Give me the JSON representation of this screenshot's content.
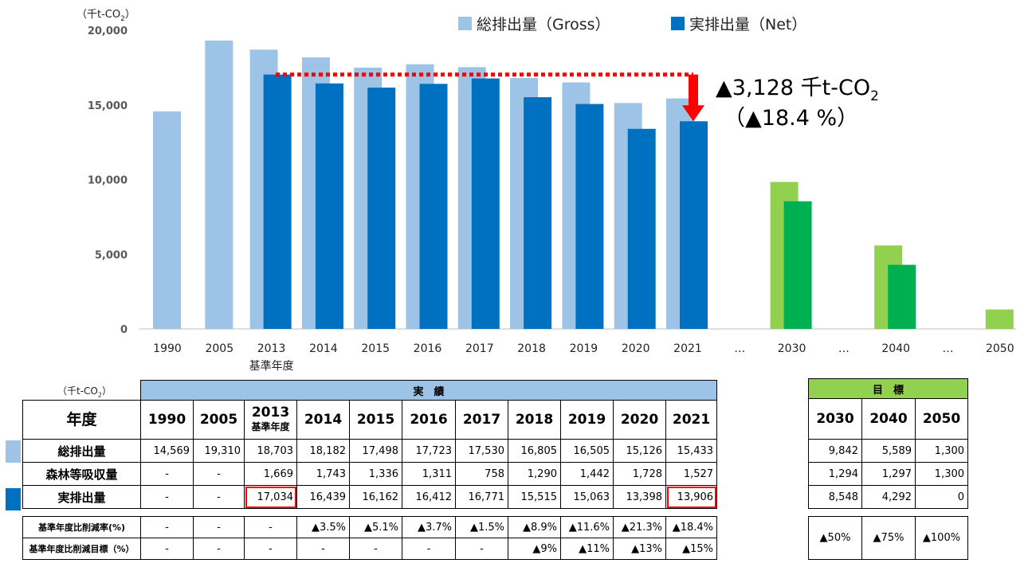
{
  "chart_data": {
    "type": "bar",
    "y_unit": "（千t-CO",
    "y_unit_sub": "2",
    "y_unit_close": "）",
    "ylim": [
      0,
      20000
    ],
    "yticks": [
      0,
      5000,
      10000,
      15000,
      20000
    ],
    "ytick_labels": [
      "0",
      "5,000",
      "10,000",
      "15,000",
      "20,000"
    ],
    "categories": [
      "1990",
      "2005",
      "2013",
      "2014",
      "2015",
      "2016",
      "2017",
      "2018",
      "2019",
      "2020",
      "2021",
      "…",
      "2030",
      "…",
      "2040",
      "…",
      "2050"
    ],
    "category_sublabels": {
      "2": "基準年度"
    },
    "series": [
      {
        "name": "総排出量（Gross）",
        "color": "#9dc3e6",
        "target_color": "#92d050",
        "values": [
          14569,
          19310,
          18703,
          18182,
          17498,
          17723,
          17530,
          16805,
          16505,
          15126,
          15433,
          null,
          9842,
          null,
          5589,
          null,
          1300
        ]
      },
      {
        "name": "実排出量（Net）",
        "color": "#0070c0",
        "target_color": "#00b050",
        "values": [
          null,
          null,
          17034,
          16439,
          16162,
          16412,
          16771,
          15515,
          15063,
          13398,
          13906,
          null,
          8548,
          null,
          4292,
          null,
          null
        ]
      }
    ],
    "target_start_index": 12,
    "annotation": {
      "line1": "▲3,128 千t-CO",
      "line1_sub": "2",
      "line2": "（▲18.4 %）",
      "from_value": 17034,
      "to_value": 13906,
      "line_color": "#ff0000"
    }
  },
  "table": {
    "unit": "（千t-CO",
    "unit_sub": "2",
    "unit_close": "）",
    "actual_header": "実　績",
    "target_header": "目　標",
    "year_label": "年度",
    "years": [
      "1990",
      "2005",
      "2013",
      "2014",
      "2015",
      "2016",
      "2017",
      "2018",
      "2019",
      "2020",
      "2021"
    ],
    "base_sublabel": "基準年度",
    "target_years": [
      "2030",
      "2040",
      "2050"
    ],
    "rows": [
      {
        "label": "総排出量",
        "swatch": "#9dc3e6",
        "values": [
          "14,569",
          "19,310",
          "18,703",
          "18,182",
          "17,498",
          "17,723",
          "17,530",
          "16,805",
          "16,505",
          "15,126",
          "15,433"
        ],
        "targets": [
          "9,842",
          "5,589",
          "1,300"
        ]
      },
      {
        "label": "森林等吸収量",
        "swatch": "",
        "values": [
          "-",
          "-",
          "1,669",
          "1,743",
          "1,336",
          "1,311",
          "758",
          "1,290",
          "1,442",
          "1,728",
          "1,527"
        ],
        "targets": [
          "1,294",
          "1,297",
          "1,300"
        ]
      },
      {
        "label": "実排出量",
        "swatch": "#0070c0",
        "values": [
          "-",
          "-",
          "17,034",
          "16,439",
          "16,162",
          "16,412",
          "16,771",
          "15,515",
          "15,063",
          "13,398",
          "13,906"
        ],
        "targets": [
          "8,548",
          "4,292",
          "0"
        ]
      }
    ],
    "rate_rows": [
      {
        "label": "基準年度比削減率(%)",
        "values": [
          "-",
          "-",
          "-",
          "▲3.5%",
          "▲5.1%",
          "▲3.7%",
          "▲1.5%",
          "▲8.9%",
          "▲11.6%",
          "▲21.3%",
          "▲18.4%"
        ]
      },
      {
        "label": "基準年度比削減目標（%）",
        "values": [
          "-",
          "-",
          "-",
          "-",
          "-",
          "-",
          "-",
          "▲9%",
          "▲11%",
          "▲13%",
          "▲15%"
        ]
      }
    ],
    "target_rates": [
      "▲50%",
      "▲75%",
      "▲100%"
    ]
  }
}
